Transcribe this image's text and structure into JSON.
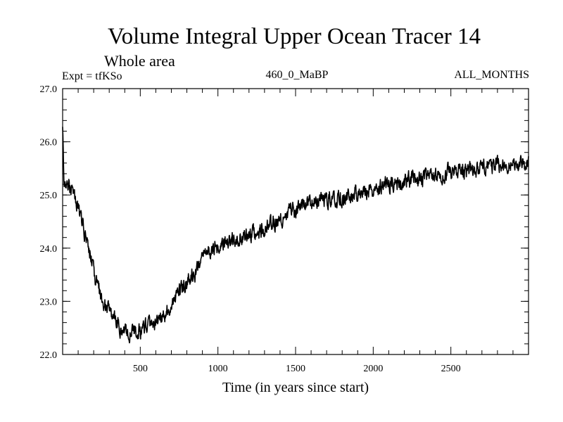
{
  "chart_data": {
    "type": "line",
    "title": "Volume Integral Upper Ocean Tracer 14",
    "subtitle": "Whole area",
    "experiment_label": "Expt = tfKSo",
    "center_label": "460_0_MaBP",
    "right_label": "ALL_MONTHS",
    "xlabel": "Time (in years since start)",
    "ylabel": "",
    "xlim": [
      0,
      3000
    ],
    "ylim": [
      22.0,
      27.0
    ],
    "x_ticks": [
      500,
      1000,
      1500,
      2000,
      2500
    ],
    "x_tick_labels": [
      "500",
      "1000",
      "1500",
      "2000",
      "2500"
    ],
    "y_ticks": [
      22.0,
      23.0,
      24.0,
      25.0,
      26.0,
      27.0
    ],
    "y_tick_labels": [
      "22.0",
      "23.0",
      "24.0",
      "25.0",
      "26.0",
      "27.0"
    ],
    "series": [
      {
        "name": "Tracer 14",
        "color": "#000000",
        "x": [
          0,
          50,
          100,
          150,
          200,
          250,
          300,
          350,
          400,
          450,
          500,
          550,
          600,
          650,
          700,
          750,
          800,
          850,
          900,
          950,
          1000,
          1100,
          1200,
          1300,
          1400,
          1500,
          1600,
          1700,
          1800,
          1900,
          2000,
          2100,
          2200,
          2300,
          2400,
          2500,
          2600,
          2700,
          2800,
          2900,
          3000
        ],
        "values": [
          25.3,
          25.15,
          24.8,
          24.2,
          23.6,
          23.05,
          22.8,
          22.55,
          22.45,
          22.4,
          22.45,
          22.5,
          22.6,
          22.75,
          22.95,
          23.2,
          23.35,
          23.55,
          23.8,
          23.95,
          24.05,
          24.15,
          24.25,
          24.35,
          24.55,
          24.75,
          24.9,
          24.95,
          24.95,
          25.05,
          25.1,
          25.2,
          25.25,
          25.3,
          25.35,
          25.45,
          25.45,
          25.5,
          25.55,
          25.6,
          25.55
        ]
      }
    ],
    "noise_amplitude": 0.12,
    "grid": false
  }
}
